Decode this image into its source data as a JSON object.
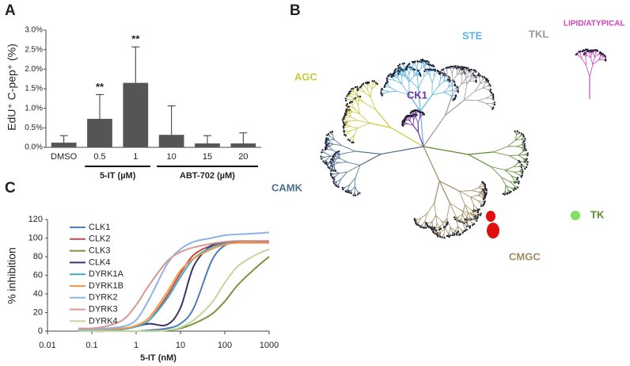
{
  "panel_labels": [
    "A",
    "B",
    "C"
  ],
  "chart_data": [
    {
      "type": "bar",
      "ylabel": "EdU⁺ C-pep⁺ (%)",
      "categories": [
        "DMSO",
        "0.5",
        "1",
        "10",
        "15",
        "20"
      ],
      "values": [
        0.12,
        0.73,
        1.65,
        0.32,
        0.1,
        0.1
      ],
      "errors": [
        0.18,
        0.62,
        0.92,
        0.74,
        0.2,
        0.27
      ],
      "annotations": [
        null,
        "**",
        "**",
        null,
        null,
        null
      ],
      "groups": [
        "5-IT (µM)",
        "ABT-702 (µM)"
      ],
      "color": "#555555",
      "ylim": [
        0,
        3
      ],
      "yticks": [
        {
          "value": 0,
          "label": "0.0%"
        },
        {
          "value": 0.5,
          "label": "0.5%"
        },
        {
          "value": 1,
          "label": "1.0%"
        },
        {
          "value": 1.5,
          "label": "1.5%"
        },
        {
          "value": 2,
          "label": "2.0%"
        },
        {
          "value": 2.5,
          "label": "2.5%"
        },
        {
          "value": 3,
          "label": "3.0%"
        }
      ]
    },
    {
      "type": "line",
      "xlabel": "5-IT (nM)",
      "ylabel": "% inhibition",
      "xscale": "log",
      "x": [
        0.05,
        0.1,
        0.2,
        0.5,
        1,
        2,
        5,
        10,
        20,
        50,
        100,
        200,
        500,
        1000
      ],
      "series": [
        {
          "name": "CLK1",
          "color": "#4a7ebb",
          "values": [
            0,
            0,
            0,
            0,
            0,
            1,
            3,
            8,
            25,
            75,
            92,
            95,
            95,
            95
          ]
        },
        {
          "name": "CLK2",
          "color": "#be4b48",
          "values": [
            2,
            2,
            2,
            3,
            5,
            12,
            38,
            62,
            82,
            92,
            94,
            95,
            95,
            95
          ]
        },
        {
          "name": "CLK3",
          "color": "#77933c",
          "values": [
            0,
            0,
            0,
            0,
            0,
            0,
            1,
            3,
            8,
            18,
            32,
            50,
            68,
            80
          ]
        },
        {
          "name": "CLK4",
          "color": "#403069",
          "values": [
            0,
            0,
            0,
            2,
            5,
            8,
            7,
            25,
            70,
            92,
            95,
            96,
            96,
            96
          ]
        },
        {
          "name": "DYRK1A",
          "color": "#46aac5",
          "values": [
            1,
            1,
            1,
            2,
            5,
            12,
            35,
            58,
            78,
            90,
            94,
            95,
            95,
            95
          ]
        },
        {
          "name": "DYRK1B",
          "color": "#f79646",
          "values": [
            2,
            2,
            2,
            3,
            6,
            15,
            42,
            65,
            78,
            88,
            93,
            95,
            95,
            95
          ]
        },
        {
          "name": "DYRK2",
          "color": "#8eb4e3",
          "values": [
            2,
            2,
            3,
            5,
            12,
            35,
            72,
            88,
            96,
            100,
            103,
            104,
            105,
            106
          ]
        },
        {
          "name": "DYRK3",
          "color": "#d99694",
          "values": [
            3,
            3,
            5,
            12,
            28,
            50,
            75,
            85,
            90,
            94,
            96,
            97,
            97,
            97
          ]
        },
        {
          "name": "DYRK4",
          "color": "#c3d69b",
          "values": [
            0,
            0,
            0,
            0,
            0,
            0,
            1,
            4,
            12,
            30,
            52,
            70,
            82,
            88
          ]
        }
      ],
      "xlim": [
        0.01,
        1000
      ],
      "xticks": [
        0.01,
        0.1,
        1,
        10,
        100,
        1000
      ],
      "ylim": [
        0,
        120
      ],
      "yticks": [
        0,
        20,
        40,
        60,
        80,
        100,
        120
      ]
    }
  ],
  "kinome_tree": {
    "groups": [
      {
        "label": "AGC",
        "color": "#c8c83c"
      },
      {
        "label": "STE",
        "color": "#5ab4e6"
      },
      {
        "label": "TKL",
        "color": "#9a9a9a"
      },
      {
        "label": "LIPID/ATYPICAL",
        "color": "#d040c0"
      },
      {
        "label": "CK1",
        "color": "#7030a0"
      },
      {
        "label": "CAMK",
        "color": "#4a6e90"
      },
      {
        "label": "CMGC",
        "color": "#a08a60"
      },
      {
        "label": "TK",
        "color": "#5a8a30"
      }
    ]
  }
}
